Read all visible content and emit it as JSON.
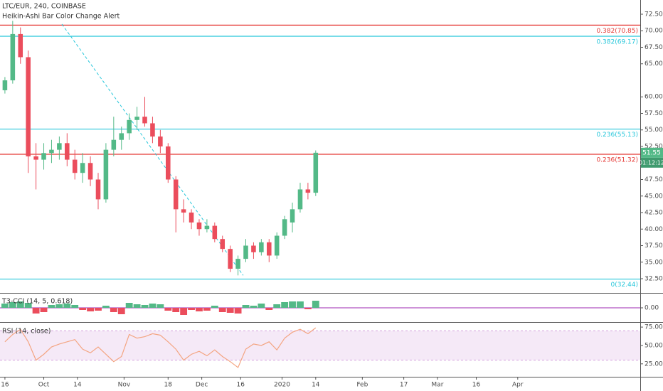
{
  "chart_data": [
    {
      "type": "candlestick",
      "title": "LTC/EUR, 240, COINBASE",
      "subtitle": "Heikin-Ashi Bar Color Change Alert",
      "up_color": "#53b987",
      "down_color": "#eb4d5c",
      "x": [
        0,
        3,
        6,
        9,
        12,
        15,
        18,
        21,
        24,
        27,
        30,
        33,
        36,
        39,
        42,
        45,
        48,
        51,
        54,
        57,
        60,
        63,
        66,
        69,
        72,
        75,
        78,
        81,
        84,
        87,
        90,
        93,
        96,
        99,
        102,
        105,
        108,
        111,
        114,
        117,
        120
      ],
      "candles": [
        [
          61.0,
          63.0,
          60.5,
          62.5
        ],
        [
          62.5,
          71.5,
          62.0,
          69.5
        ],
        [
          69.5,
          70.5,
          65.0,
          66.0
        ],
        [
          66.0,
          67.0,
          48.5,
          51.0
        ],
        [
          51.0,
          53.0,
          46.0,
          50.5
        ],
        [
          50.5,
          53.0,
          49.0,
          51.5
        ],
        [
          51.5,
          53.5,
          50.0,
          52.0
        ],
        [
          52.0,
          54.0,
          50.5,
          53.0
        ],
        [
          53.0,
          54.5,
          49.5,
          50.5
        ],
        [
          50.5,
          52.0,
          47.5,
          48.5
        ],
        [
          48.5,
          51.5,
          47.0,
          50.0
        ],
        [
          50.0,
          51.0,
          46.5,
          47.5
        ],
        [
          47.5,
          48.5,
          43.0,
          44.5
        ],
        [
          44.5,
          53.0,
          44.0,
          52.0
        ],
        [
          52.0,
          57.0,
          51.0,
          53.5
        ],
        [
          53.5,
          55.5,
          52.0,
          54.5
        ],
        [
          54.5,
          57.5,
          53.5,
          56.5
        ],
        [
          56.5,
          58.5,
          55.0,
          57.0
        ],
        [
          57.0,
          60.0,
          55.5,
          56.0
        ],
        [
          56.0,
          57.0,
          53.0,
          54.0
        ],
        [
          54.0,
          55.0,
          51.5,
          52.5
        ],
        [
          52.5,
          53.0,
          47.0,
          47.5
        ],
        [
          47.5,
          48.0,
          39.5,
          43.0
        ],
        [
          43.0,
          44.5,
          41.0,
          42.5
        ],
        [
          42.5,
          43.0,
          40.0,
          41.0
        ],
        [
          41.0,
          41.5,
          39.0,
          40.0
        ],
        [
          40.0,
          41.5,
          39.5,
          40.5
        ],
        [
          40.5,
          41.0,
          38.0,
          38.5
        ],
        [
          38.5,
          39.0,
          36.5,
          37.0
        ],
        [
          37.0,
          37.5,
          33.5,
          34.0
        ],
        [
          34.0,
          36.0,
          33.0,
          35.5
        ],
        [
          35.5,
          38.5,
          35.0,
          37.5
        ],
        [
          37.5,
          38.0,
          35.5,
          36.5
        ],
        [
          36.5,
          38.5,
          36.0,
          38.0
        ],
        [
          38.0,
          38.5,
          35.0,
          36.0
        ],
        [
          36.0,
          39.5,
          35.5,
          39.0
        ],
        [
          39.0,
          42.0,
          38.5,
          41.5
        ],
        [
          41.0,
          44.0,
          39.5,
          43.0
        ],
        [
          43.0,
          47.0,
          42.5,
          46.0
        ],
        [
          46.0,
          47.0,
          44.5,
          45.5
        ],
        [
          45.5,
          51.9,
          45.0,
          51.55
        ]
      ],
      "xlim": [
        -1.9,
        245.3
      ],
      "xticks": [
        {
          "value": 0,
          "label": "16"
        },
        {
          "value": 15,
          "label": "Oct"
        },
        {
          "value": 28,
          "label": "14"
        },
        {
          "value": 46,
          "label": "Nov"
        },
        {
          "value": 63,
          "label": "18"
        },
        {
          "value": 76,
          "label": "Dec"
        },
        {
          "value": 91,
          "label": "16"
        },
        {
          "value": 107,
          "label": "2020"
        },
        {
          "value": 120,
          "label": "14"
        },
        {
          "value": 138,
          "label": "Feb"
        },
        {
          "value": 154,
          "label": "17"
        },
        {
          "value": 167,
          "label": "Mar"
        },
        {
          "value": 182,
          "label": "16"
        },
        {
          "value": 198,
          "label": "Apr"
        }
      ],
      "ylim": [
        30.35,
        74.65
      ],
      "yticks": [
        {
          "value": 32.5,
          "label": "32.50"
        },
        {
          "value": 35,
          "label": "35.00"
        },
        {
          "value": 37.5,
          "label": "37.50"
        },
        {
          "value": 40,
          "label": "40.00"
        },
        {
          "value": 42.5,
          "label": "42.50"
        },
        {
          "value": 45,
          "label": "45.00"
        },
        {
          "value": 47.5,
          "label": "47.50"
        },
        {
          "value": 52.5,
          "label": "52.50"
        },
        {
          "value": 55,
          "label": "55.00"
        },
        {
          "value": 57.5,
          "label": "57.50"
        },
        {
          "value": 60,
          "label": "60.00"
        },
        {
          "value": 65,
          "label": "65.00"
        },
        {
          "value": 67.5,
          "label": "67.50"
        },
        {
          "value": 70,
          "label": "70.00"
        },
        {
          "value": 72.5,
          "label": "72.50"
        }
      ],
      "levels": [
        {
          "value": 70.85,
          "label": "0.382(70.85)",
          "color": "#e53935"
        },
        {
          "value": 69.17,
          "label": "0.382(69.17)",
          "color": "#26c6da"
        },
        {
          "value": 55.13,
          "label": "0.236(55.13)",
          "color": "#26c6da"
        },
        {
          "value": 51.32,
          "label": "0.236(51.32)",
          "color": "#e53935"
        },
        {
          "value": 32.44,
          "label": "0(32.44)",
          "color": "#26c6da"
        }
      ],
      "trendline": {
        "x": [
          22,
          92
        ],
        "y": [
          71.0,
          33.0
        ],
        "color": "#26c6da"
      },
      "last_price": {
        "value": 51.55,
        "label": "51.55",
        "countdown": "01:12:12"
      }
    },
    {
      "type": "bar",
      "title": "T3-CCI (14, 5, 0.618)",
      "up_color": "#53b987",
      "down_color": "#eb4d5c",
      "zero_color": "#9c27b0",
      "values": [
        60,
        80,
        90,
        70,
        -80,
        -60,
        40,
        50,
        60,
        40,
        -30,
        -50,
        -40,
        30,
        -60,
        -90,
        70,
        50,
        40,
        60,
        50,
        -40,
        -60,
        -100,
        -30,
        -50,
        -40,
        30,
        -60,
        -70,
        -80,
        40,
        30,
        60,
        -30,
        50,
        80,
        90,
        90,
        -20,
        100
      ],
      "ylim": [
        -200,
        200
      ],
      "yticks": [
        {
          "value": 0,
          "label": "0.00"
        }
      ]
    },
    {
      "type": "line",
      "title": "RSI (14, close)",
      "color": "#f4a582",
      "band": [
        30,
        70
      ],
      "band_color": "#9c27b0",
      "values": [
        55,
        65,
        72,
        55,
        30,
        38,
        48,
        52,
        55,
        58,
        45,
        40,
        48,
        38,
        28,
        35,
        65,
        60,
        62,
        66,
        64,
        55,
        45,
        30,
        38,
        42,
        36,
        44,
        35,
        28,
        20,
        45,
        52,
        50,
        55,
        44,
        60,
        68,
        72,
        66,
        74
      ],
      "ylim": [
        7.4,
        80.9
      ],
      "yticks": [
        {
          "value": 25,
          "label": "25.00"
        },
        {
          "value": 50,
          "label": "50.00"
        },
        {
          "value": 75,
          "label": "75.00"
        }
      ]
    }
  ]
}
